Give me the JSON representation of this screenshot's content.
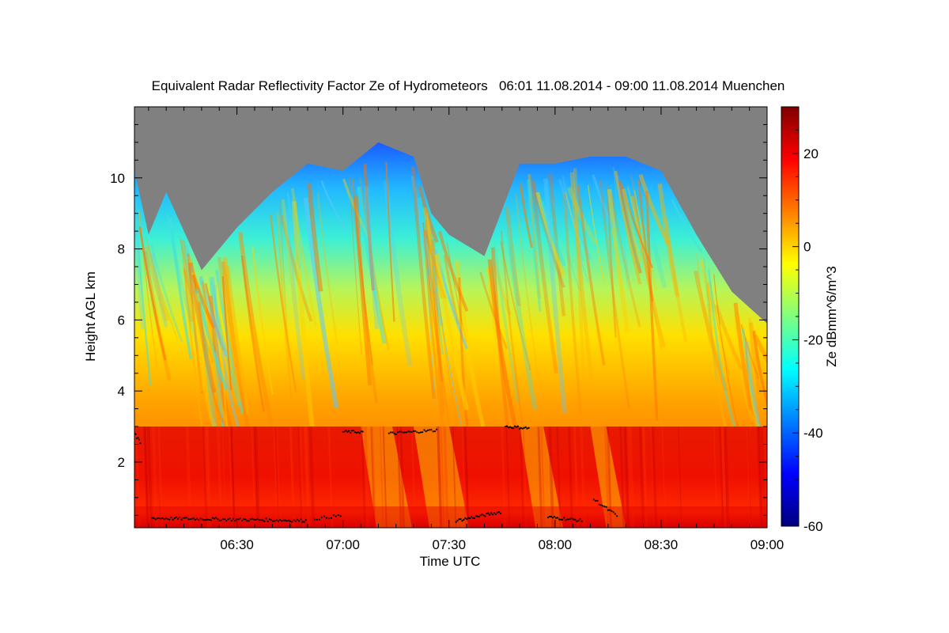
{
  "chart_data": {
    "type": "heatmap",
    "title": "Equivalent Radar Reflectivity Factor Ze of Hydrometeors   06:01 11.08.2014 - 09:00 11.08.2014 Muenchen",
    "xlabel": "Time UTC",
    "ylabel": "Height AGL km",
    "colorbar_label": "Ze dBmm^6/m^3",
    "x_range": [
      "06:01",
      "09:00"
    ],
    "x_ticks": [
      "06:30",
      "07:00",
      "07:30",
      "08:00",
      "08:30",
      "09:00"
    ],
    "ylim": [
      0.15,
      12.0
    ],
    "y_ticks": [
      2,
      4,
      6,
      8,
      10
    ],
    "colorbar_range": [
      -60,
      30
    ],
    "colorbar_ticks": [
      20,
      0,
      -20,
      -40,
      -60
    ],
    "no_data_color": "#808080",
    "colormap": [
      "#00007f",
      "#0000ff",
      "#007fff",
      "#00ffff",
      "#7fff7f",
      "#ffff00",
      "#ff7f00",
      "#ff0000",
      "#7f0000"
    ],
    "melting_layer_top_km": 3.0,
    "cloud_top_profile_km": [
      {
        "t": "06:01",
        "h": 10.2
      },
      {
        "t": "06:05",
        "h": 8.4
      },
      {
        "t": "06:10",
        "h": 9.6
      },
      {
        "t": "06:20",
        "h": 7.4
      },
      {
        "t": "06:30",
        "h": 8.6
      },
      {
        "t": "06:40",
        "h": 9.6
      },
      {
        "t": "06:50",
        "h": 10.4
      },
      {
        "t": "07:00",
        "h": 10.2
      },
      {
        "t": "07:10",
        "h": 11.0
      },
      {
        "t": "07:20",
        "h": 10.6
      },
      {
        "t": "07:25",
        "h": 9.0
      },
      {
        "t": "07:30",
        "h": 8.4
      },
      {
        "t": "07:40",
        "h": 7.8
      },
      {
        "t": "07:50",
        "h": 10.4
      },
      {
        "t": "08:00",
        "h": 10.4
      },
      {
        "t": "08:10",
        "h": 10.6
      },
      {
        "t": "08:20",
        "h": 10.6
      },
      {
        "t": "08:30",
        "h": 10.2
      },
      {
        "t": "08:40",
        "h": 8.4
      },
      {
        "t": "08:50",
        "h": 6.8
      },
      {
        "t": "09:00",
        "h": 5.9
      }
    ]
  }
}
